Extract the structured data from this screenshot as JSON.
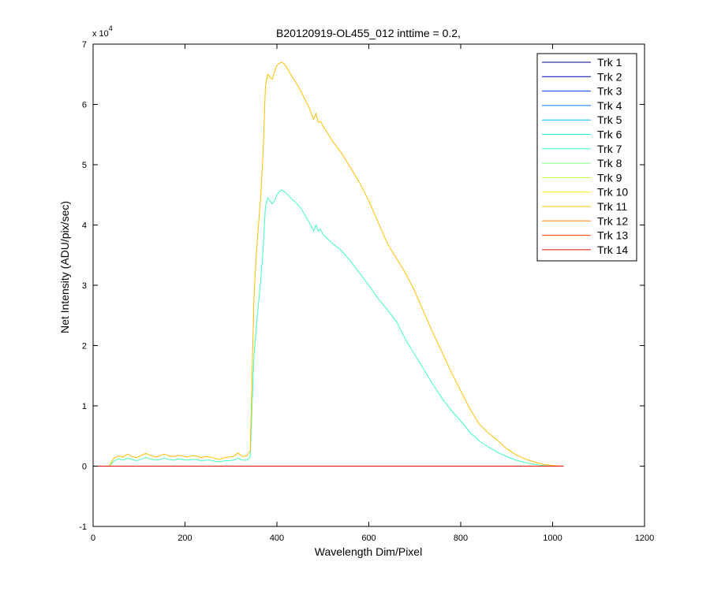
{
  "chart_data": {
    "type": "line",
    "title": "B20120919-OL455_012 inttime = 0.2,",
    "xlabel": "Wavelength Dim/Pixel",
    "ylabel": "Net Intensity (ADU/pix/sec)",
    "xlim": [
      0,
      1200
    ],
    "ylim": [
      -10000,
      70000
    ],
    "y_multiplier_label": {
      "base": "x 10",
      "exponent": "4"
    },
    "x_ticks": [
      0,
      200,
      400,
      600,
      800,
      1000,
      1200
    ],
    "x_tick_labels": [
      "0",
      "200",
      "400",
      "600",
      "800",
      "1000",
      "1200"
    ],
    "y_ticks": [
      -10000,
      0,
      10000,
      20000,
      30000,
      40000,
      50000,
      60000,
      70000
    ],
    "y_tick_labels": [
      "-1",
      "0",
      "1",
      "2",
      "3",
      "4",
      "5",
      "6",
      "7"
    ],
    "grid": false,
    "legend_position": "top-right",
    "flat_x": [
      0,
      1024
    ],
    "series": [
      {
        "name": "Trk 1",
        "color": "#00008f",
        "x": [
          0,
          1024
        ],
        "y": [
          0,
          0
        ]
      },
      {
        "name": "Trk 2",
        "color": "#0000bf",
        "x": [
          0,
          1024
        ],
        "y": [
          0,
          0
        ]
      },
      {
        "name": "Trk 3",
        "color": "#0040ff",
        "x": [
          0,
          1024
        ],
        "y": [
          0,
          0
        ]
      },
      {
        "name": "Trk 4",
        "color": "#0080ff",
        "x": [
          0,
          1024
        ],
        "y": [
          0,
          0
        ]
      },
      {
        "name": "Trk 5",
        "color": "#00bfff",
        "x": [
          0,
          1024
        ],
        "y": [
          0,
          0
        ]
      },
      {
        "name": "Trk 6",
        "color": "#10e8e8",
        "x": [
          0,
          1024
        ],
        "y": [
          0,
          0
        ]
      },
      {
        "name": "Trk 7",
        "color": "#40ffbf",
        "x": [
          0,
          35,
          45,
          55,
          65,
          75,
          85,
          95,
          105,
          115,
          125,
          135,
          145,
          155,
          165,
          175,
          185,
          195,
          205,
          215,
          225,
          235,
          245,
          255,
          265,
          275,
          285,
          295,
          305,
          315,
          325,
          335,
          342,
          346,
          350,
          355,
          360,
          365,
          370,
          375,
          380,
          385,
          390,
          395,
          400,
          405,
          410,
          415,
          420,
          430,
          440,
          450,
          460,
          470,
          480,
          485,
          490,
          495,
          500,
          520,
          540,
          560,
          580,
          600,
          620,
          640,
          660,
          680,
          700,
          720,
          740,
          760,
          780,
          800,
          820,
          840,
          860,
          880,
          900,
          920,
          940,
          960,
          980,
          1000,
          1010,
          1024
        ],
        "y": [
          0,
          0,
          800,
          1200,
          1000,
          1300,
          1100,
          900,
          1200,
          1400,
          1200,
          1000,
          1100,
          1300,
          1100,
          1000,
          1200,
          1100,
          1000,
          1100,
          1100,
          900,
          1000,
          1000,
          800,
          700,
          900,
          900,
          1000,
          1300,
          1000,
          1000,
          1500,
          10000,
          18000,
          23000,
          27000,
          31000,
          36000,
          43000,
          44500,
          44000,
          43500,
          44000,
          45000,
          45500,
          45800,
          45600,
          45300,
          44500,
          43800,
          43000,
          41800,
          40500,
          39000,
          40000,
          39000,
          39300,
          38500,
          37000,
          35800,
          34000,
          32000,
          30000,
          27800,
          26000,
          24000,
          21000,
          18500,
          16000,
          13500,
          11200,
          9200,
          7500,
          5600,
          4200,
          3200,
          2300,
          1600,
          1000,
          600,
          300,
          100,
          50,
          0,
          0
        ]
      },
      {
        "name": "Trk 8",
        "color": "#80ff80",
        "x": [
          0,
          1024
        ],
        "y": [
          0,
          0
        ]
      },
      {
        "name": "Trk 9",
        "color": "#bfff40",
        "x": [
          0,
          1024
        ],
        "y": [
          0,
          0
        ]
      },
      {
        "name": "Trk 10",
        "color": "#ffff00",
        "x": [
          0,
          1024
        ],
        "y": [
          0,
          0
        ]
      },
      {
        "name": "Trk 11",
        "color": "#ffbf00",
        "x": [
          0,
          35,
          45,
          55,
          65,
          75,
          85,
          95,
          105,
          115,
          125,
          135,
          145,
          155,
          165,
          175,
          185,
          195,
          205,
          215,
          225,
          235,
          245,
          255,
          265,
          275,
          285,
          295,
          305,
          315,
          325,
          335,
          342,
          346,
          350,
          355,
          360,
          365,
          370,
          375,
          380,
          385,
          390,
          395,
          400,
          405,
          410,
          415,
          420,
          430,
          440,
          450,
          460,
          470,
          480,
          485,
          490,
          495,
          500,
          520,
          540,
          560,
          580,
          600,
          620,
          640,
          660,
          680,
          700,
          720,
          740,
          760,
          780,
          800,
          820,
          840,
          860,
          880,
          900,
          920,
          940,
          960,
          980,
          1000,
          1010,
          1024
        ],
        "y": [
          0,
          0,
          1300,
          1700,
          1500,
          2000,
          1600,
          1400,
          1800,
          2100,
          1800,
          1500,
          1700,
          2000,
          1700,
          1600,
          1800,
          1700,
          1500,
          1700,
          1700,
          1400,
          1600,
          1500,
          1300,
          1100,
          1400,
          1500,
          1600,
          2200,
          1600,
          1700,
          2600,
          15000,
          28000,
          35000,
          40000,
          45000,
          52000,
          63000,
          65000,
          64500,
          64200,
          65500,
          66500,
          66800,
          67000,
          66800,
          66300,
          65000,
          63800,
          62500,
          61000,
          59500,
          57500,
          58500,
          57000,
          57200,
          56500,
          54000,
          52000,
          49500,
          47000,
          44000,
          40500,
          37000,
          34500,
          32000,
          29000,
          25500,
          22000,
          18800,
          15500,
          12500,
          9500,
          7000,
          5500,
          4300,
          2900,
          1900,
          1200,
          700,
          300,
          100,
          50,
          0
        ]
      },
      {
        "name": "Trk 12",
        "color": "#ff8000",
        "x": [
          0,
          1024
        ],
        "y": [
          0,
          0
        ]
      },
      {
        "name": "Trk 13",
        "color": "#ff4000",
        "x": [
          0,
          1024
        ],
        "y": [
          0,
          0
        ]
      },
      {
        "name": "Trk 14",
        "color": "#e01000",
        "x": [
          0,
          1024
        ],
        "y": [
          0,
          0
        ]
      }
    ]
  }
}
